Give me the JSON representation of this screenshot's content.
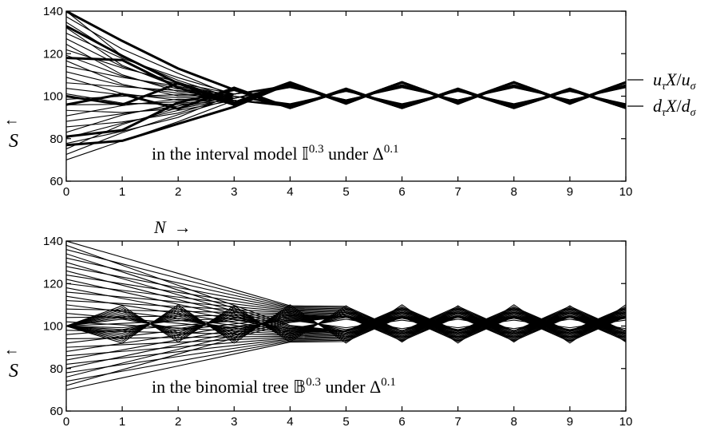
{
  "x_axis_text": {
    "n_label": "N",
    "arrow": "→"
  },
  "y_axis_text": {
    "s_label": "S",
    "arrow": "↑"
  },
  "right_labels": {
    "upper": "u_τ X/u_σ",
    "lower": "d_τ X/d_σ"
  },
  "chart_data": [
    {
      "type": "line",
      "annotation": {
        "text": "in the interval model 𝕀^0.3 under Δ^0.1",
        "lead": "in the interval model ",
        "symbol": "𝕀",
        "symbol_exp": "0.3",
        "mid": " under ",
        "delta": "Δ",
        "delta_exp": "0.1"
      },
      "xlim": [
        0,
        10
      ],
      "ylim": [
        60,
        140
      ],
      "xticks": [
        0,
        1,
        2,
        3,
        4,
        5,
        6,
        7,
        8,
        9,
        10
      ],
      "yticks": [
        60,
        80,
        100,
        120,
        140
      ],
      "x": [
        0,
        1,
        2,
        3,
        4,
        5,
        6,
        7,
        8,
        9,
        10
      ],
      "envelope_upper": [
        140,
        126,
        114,
        104,
        106.5,
        103.5,
        106.5,
        103.5,
        106.5,
        103.5,
        106.5
      ],
      "envelope_lower": [
        70,
        79,
        88,
        96,
        94,
        97,
        94,
        97,
        94,
        97,
        94
      ],
      "bold_paths": [
        [
          140,
          126,
          113,
          103,
          94.5,
          103,
          94.5,
          103,
          94.5,
          103,
          94.5
        ],
        [
          133,
          119,
          106,
          97,
          106.5,
          97,
          106.5,
          97,
          106.5,
          97,
          106.5
        ],
        [
          118,
          117,
          104,
          96,
          106,
          96.5,
          106.5,
          96.5,
          106.5,
          96.5,
          106.5
        ],
        [
          100,
          96,
          106,
          96,
          106,
          97,
          106.5,
          97,
          106.5,
          97,
          106.5
        ],
        [
          96,
          101,
          94,
          104,
          94.5,
          103,
          94.5,
          103,
          94.5,
          103,
          94.5
        ],
        [
          81,
          84,
          97,
          103,
          94.5,
          103.5,
          94.5,
          103.5,
          94.5,
          103.5,
          94.5
        ],
        [
          77,
          79,
          87,
          95,
          106,
          97,
          106.5,
          97,
          106.5,
          97,
          106.5
        ]
      ],
      "thin_start_range": [
        70,
        140
      ],
      "thin_line_count": 28
    },
    {
      "type": "line",
      "annotation": {
        "text": "in the binomial tree 𝔹^0.3 under Δ^0.1",
        "lead": "in the binomial tree ",
        "symbol": "𝔹",
        "symbol_exp": "0.3",
        "mid": " under ",
        "delta": "Δ",
        "delta_exp": "0.1"
      },
      "xlim": [
        0,
        10
      ],
      "ylim": [
        60,
        140
      ],
      "xticks": [
        0,
        1,
        2,
        3,
        4,
        5,
        6,
        7,
        8,
        9,
        10
      ],
      "yticks": [
        60,
        80,
        100,
        120,
        140
      ],
      "x": [
        0,
        1,
        2,
        3,
        4,
        5,
        6,
        7,
        8,
        9,
        10
      ],
      "start_range": [
        70,
        140
      ],
      "converge_steps": 4,
      "oscillation_center": 101,
      "oscillation_amplitude": 9,
      "fan_line_count": 36,
      "mesh_line_count": 17
    }
  ]
}
